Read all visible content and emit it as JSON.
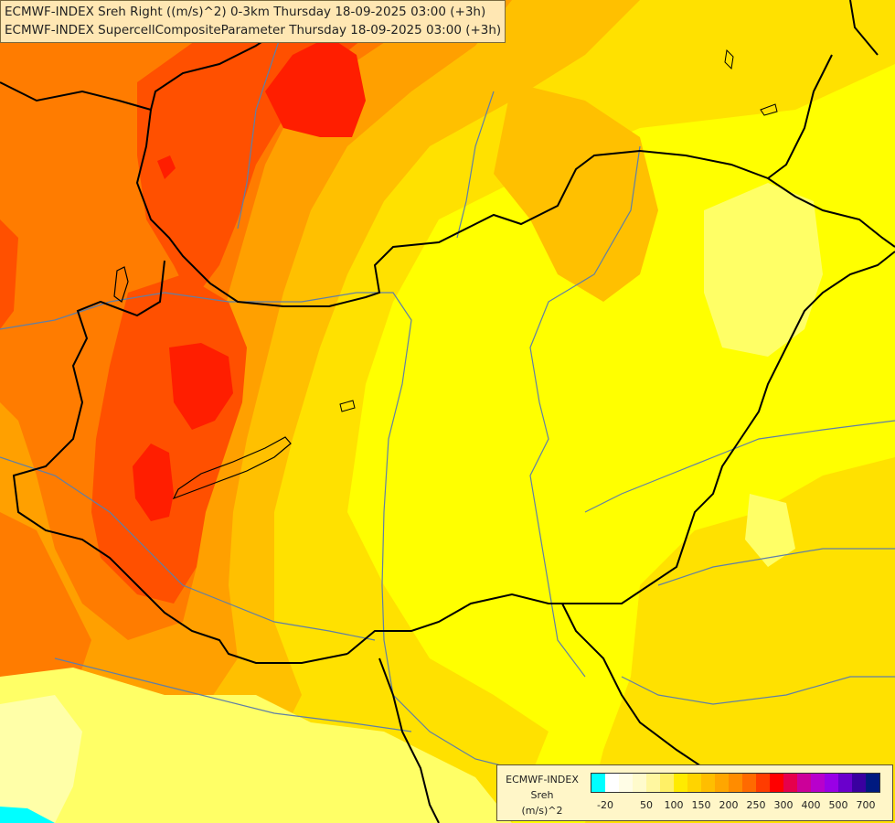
{
  "header": {
    "line1": "ECMWF-INDEX Sreh Right ((m/s)^2) 0-3km Thursday 18-09-2025 03:00 (+3h)",
    "line2": "ECMWF-INDEX SupercellCompositeParameter Thursday 18-09-2025 03:00 (+3h)"
  },
  "legend": {
    "line1": "ECMWF-INDEX",
    "line2": "Sreh",
    "line3": "(m/s)^2",
    "tick_labels": [
      "-20",
      "50",
      "100",
      "150",
      "200",
      "250",
      "300",
      "400",
      "500",
      "700"
    ],
    "colors": [
      "#00ffff",
      "#ffffff",
      "#fffde6",
      "#fffbcc",
      "#fff7a0",
      "#fff066",
      "#ffeb00",
      "#ffd400",
      "#ffbe00",
      "#ffa600",
      "#ff8c00",
      "#ff6a00",
      "#ff3c00",
      "#ff0000",
      "#e6004c",
      "#cc0099",
      "#b800cc",
      "#9900e6",
      "#6a00cc",
      "#3a00a0",
      "#001a80"
    ]
  },
  "map": {
    "colors": {
      "field_yellow": "#ffff00",
      "field_light_yellow": "#ffff66",
      "field_pale": "#ffffa8",
      "field_gold": "#ffe100",
      "field_light_orange": "#ffc000",
      "field_orange": "#ffa000",
      "field_dark_orange": "#ff7c00",
      "field_red_orange": "#ff5000",
      "field_red": "#ff1e00",
      "field_cyan": "#00ffff",
      "border": "#000000",
      "river": "#5f7fa6"
    }
  }
}
